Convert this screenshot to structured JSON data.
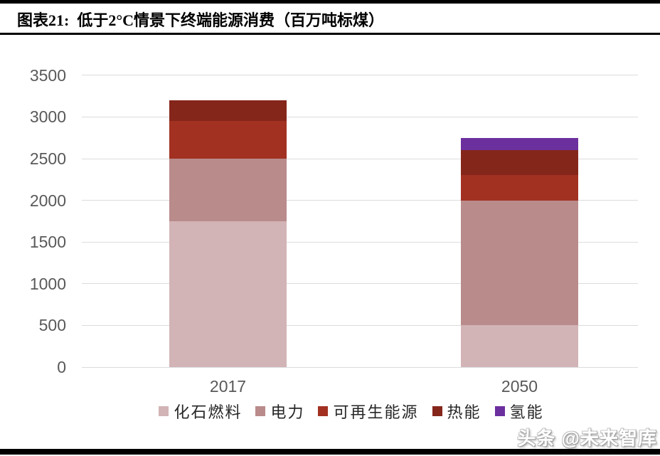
{
  "header": {
    "figure_label": "图表21",
    "title": "图表21:  低于2°C情景下终端能源消费（百万吨标煤）"
  },
  "watermark": {
    "text": "头条 @未来智库"
  },
  "chart_data": {
    "type": "bar",
    "stacked": true,
    "title": "低于2°C情景下终端能源消费（百万吨标煤）",
    "unit": "百万吨标煤",
    "categories": [
      "2017",
      "2050"
    ],
    "series": [
      {
        "name": "化石燃料",
        "color": "#d2b4b6",
        "values": [
          1750,
          500
        ]
      },
      {
        "name": "电力",
        "color": "#b98b8b",
        "values": [
          750,
          1500
        ]
      },
      {
        "name": "可再生能源",
        "color": "#a23122",
        "values": [
          450,
          300
        ]
      },
      {
        "name": "热能",
        "color": "#85261b",
        "values": [
          250,
          300
        ]
      },
      {
        "name": "氢能",
        "color": "#6c2f9e",
        "values": [
          0,
          150
        ]
      }
    ],
    "totals": [
      3200,
      2750
    ],
    "ylim": [
      0,
      3500
    ],
    "yticks": [
      0,
      500,
      1000,
      1500,
      2000,
      2500,
      3000,
      3500
    ],
    "grid": true,
    "legend_position": "bottom",
    "colors": {
      "axis_text": "#595959",
      "gridline": "#dcdcdc",
      "rule": "#000000"
    }
  }
}
